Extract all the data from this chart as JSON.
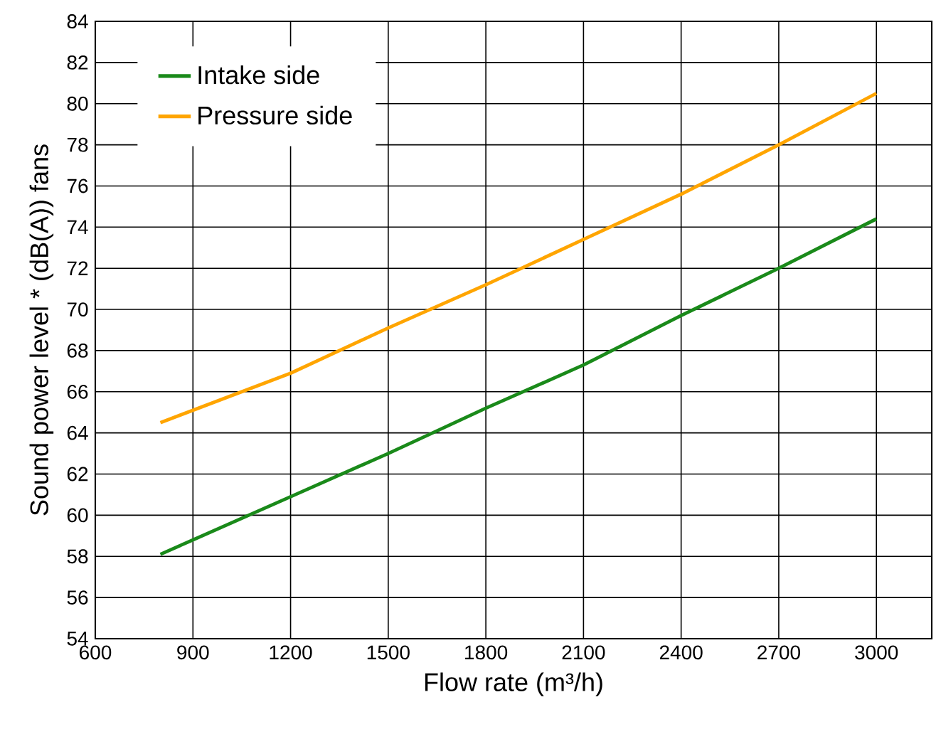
{
  "chart_data": {
    "type": "line",
    "xlabel": "Flow rate (m³/h)",
    "ylabel": "Sound power level * (dB(A)) fans",
    "xlim": [
      600,
      3170
    ],
    "ylim": [
      54,
      84
    ],
    "xticks": [
      600,
      900,
      1200,
      1500,
      1800,
      2100,
      2400,
      2700,
      3000
    ],
    "yticks": [
      54,
      56,
      58,
      60,
      62,
      64,
      66,
      68,
      70,
      72,
      74,
      76,
      78,
      80,
      82,
      84
    ],
    "grid": true,
    "legend": "top left",
    "marker": "none",
    "line_style": "solid",
    "series": [
      {
        "name": "Intake side",
        "color": "#1a8a1a",
        "x": [
          800,
          1200,
          1500,
          1800,
          2100,
          2400,
          2700,
          3000
        ],
        "values": [
          58.1,
          60.9,
          63.0,
          65.2,
          67.3,
          69.7,
          72.0,
          74.4
        ]
      },
      {
        "name": "Pressure side",
        "color": "#ffa500",
        "x": [
          800,
          1200,
          1500,
          1800,
          2100,
          2400,
          2700,
          3000
        ],
        "values": [
          64.5,
          66.9,
          69.1,
          71.2,
          73.4,
          75.6,
          78.0,
          80.5
        ]
      }
    ]
  }
}
